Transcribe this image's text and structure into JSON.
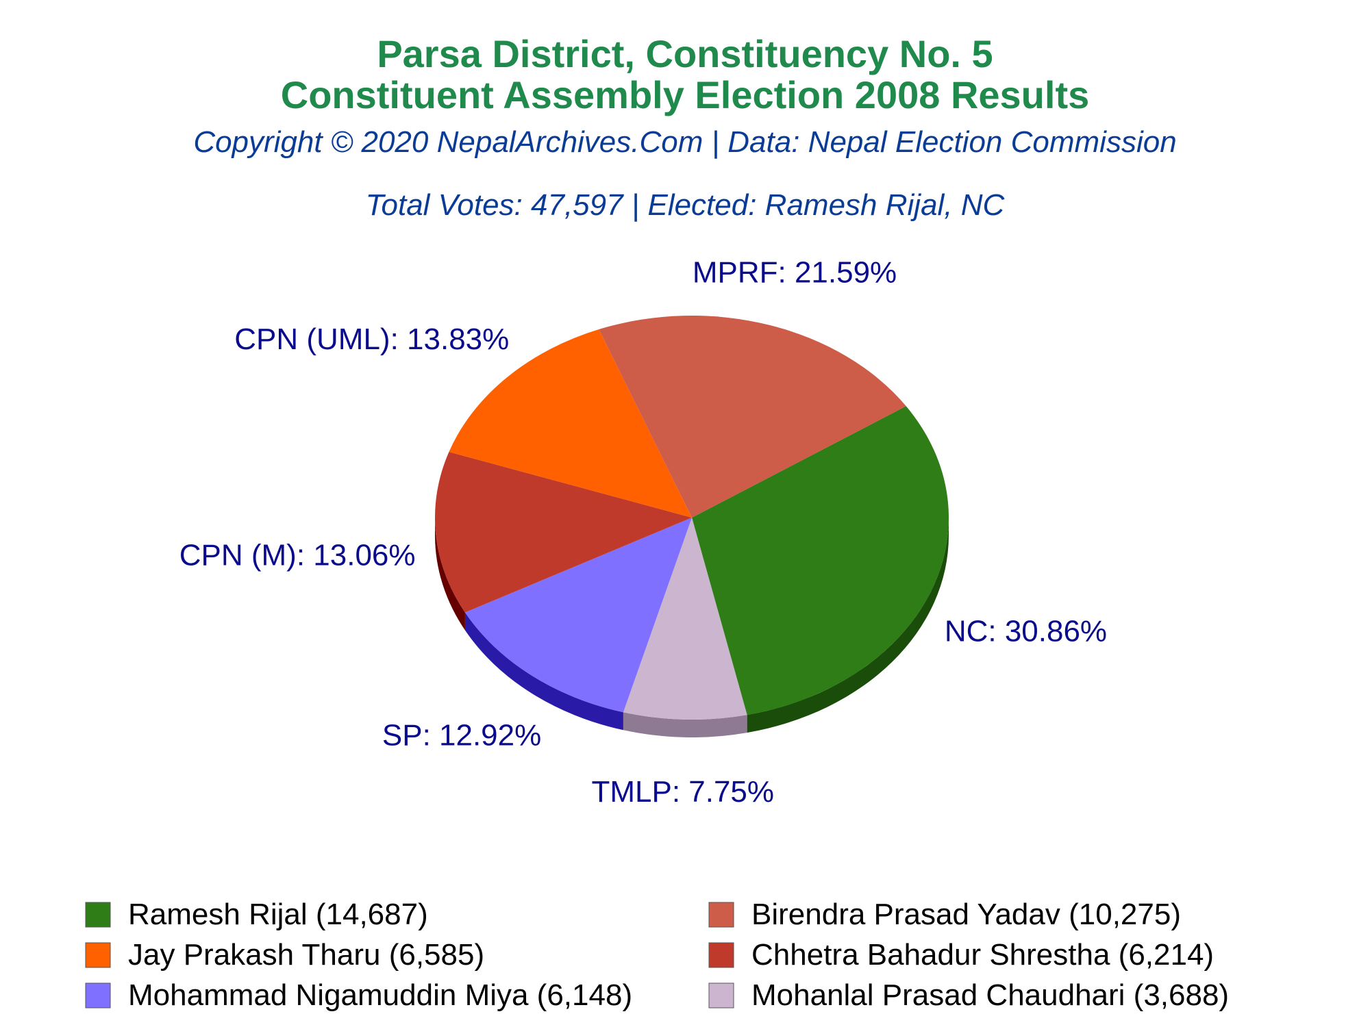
{
  "title_line1": "Parsa District, Constituency No. 5",
  "title_line2": "Constituent Assembly Election 2008 Results",
  "copyright": "Copyright © 2020 NepalArchives.Com | Data: Nepal Election Commission",
  "summary": "Total Votes: 47,597 | Elected: Ramesh Rijal, NC",
  "colors": {
    "title": "#1f8a4c",
    "subtitle": "#0a3c96",
    "slice_label": "#0a0a8c"
  },
  "chart_data": {
    "type": "pie",
    "style": "3d-tilted",
    "slices": [
      {
        "party": "NC",
        "percent": 30.86,
        "label": "NC: 30.86%",
        "candidate": "Ramesh Rijal",
        "votes": 14687,
        "legend": "Ramesh Rijal (14,687)",
        "color": "#2e7d16",
        "side_color": "#1a4d0a"
      },
      {
        "party": "TMLP",
        "percent": 7.75,
        "label": "TMLP: 7.75%",
        "candidate": "Mohanlal Prasad Chaudhari",
        "votes": 3688,
        "legend": "Mohanlal Prasad Chaudhari (3,688)",
        "color": "#cbb5cf",
        "side_color": "#8e7a92"
      },
      {
        "party": "SP",
        "percent": 12.92,
        "label": "SP: 12.92%",
        "candidate": "Mohammad Nigamuddin Miya",
        "votes": 6148,
        "legend": "Mohammad Nigamuddin Miya (6,148)",
        "color": "#8070ff",
        "side_color": "#2a1aa8"
      },
      {
        "party": "CPN (M)",
        "percent": 13.06,
        "label": "CPN (M): 13.06%",
        "candidate": "Chhetra Bahadur Shrestha",
        "votes": 6214,
        "legend": "Chhetra Bahadur Shrestha (6,214)",
        "color": "#bf3a2a",
        "side_color": "#640000"
      },
      {
        "party": "CPN (UML)",
        "percent": 13.83,
        "label": "CPN (UML): 13.83%",
        "candidate": "Jay Prakash Tharu",
        "votes": 6585,
        "legend": "Jay Prakash Tharu (6,585)",
        "color": "#ff6000",
        "side_color": "#aa0000"
      },
      {
        "party": "MPRF",
        "percent": 21.59,
        "label": "MPRF: 21.59%",
        "candidate": "Birendra Prasad Yadav",
        "votes": 10275,
        "legend": "Birendra Prasad Yadav (10,275)",
        "color": "#cd5c48",
        "side_color": "#8a1a10"
      }
    ],
    "legend_order": [
      "NC",
      "MPRF",
      "CPN (UML)",
      "CPN (M)",
      "SP",
      "TMLP"
    ],
    "legend_placement": "bottom"
  }
}
